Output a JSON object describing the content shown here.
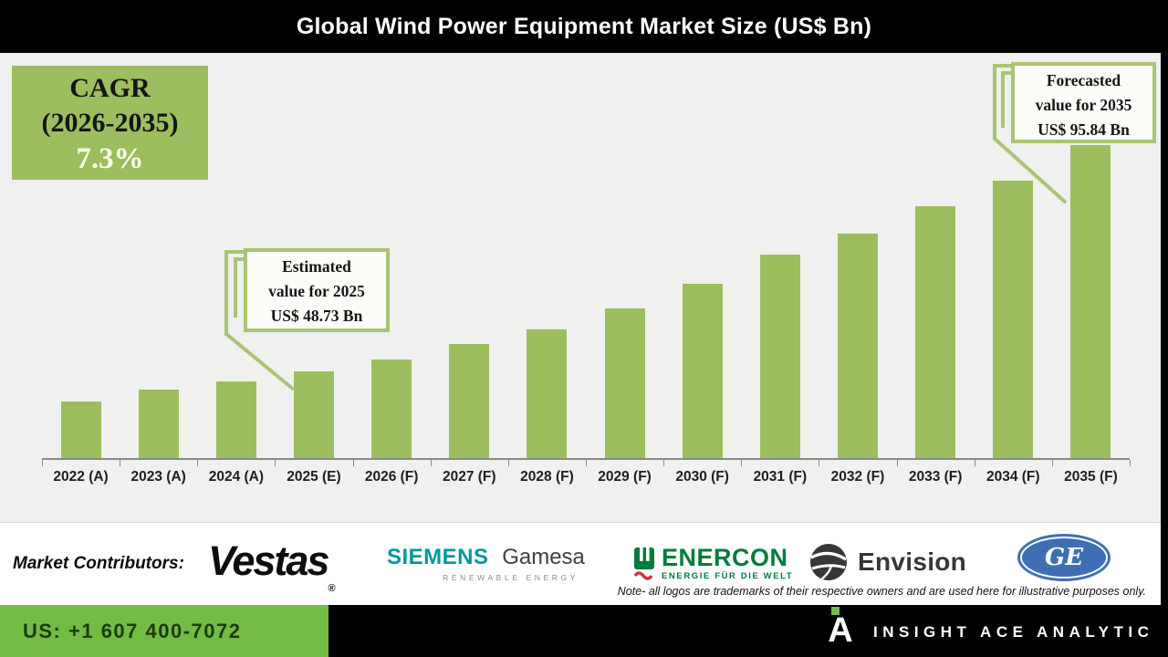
{
  "window": {
    "title": "Global Wind Power Equipment Market Size (US$ Bn)"
  },
  "cagr_box": {
    "title": "CAGR",
    "range": "(2026-2035)",
    "value": "7.3%"
  },
  "callout_estimated": {
    "line1": "Estimated",
    "line2": "value for 2025",
    "line3": "US$ 48.73 Bn"
  },
  "callout_forecasted": {
    "line1": "Forecasted",
    "line2": "value for 2035",
    "line3": "US$ 95.84 Bn"
  },
  "chart_data": {
    "type": "bar",
    "title": "Global Wind Power Equipment Market Size (US$ Bn)",
    "unit": "US$ Bn",
    "categories": [
      "2022 (A)",
      "2023 (A)",
      "2024 (A)",
      "2025 (E)",
      "2026 (F)",
      "2027 (F)",
      "2028 (F)",
      "2029 (F)",
      "2030 (F)",
      "2031 (F)",
      "2032 (F)",
      "2033 (F)",
      "2034 (F)",
      "2035 (F)"
    ],
    "values": [
      42.5,
      44.9,
      46.6,
      48.73,
      51.2,
      54.4,
      57.5,
      61.8,
      67.0,
      73.1,
      77.4,
      83.1,
      88.4,
      95.84
    ],
    "labeled_values": {
      "2025 (E)": 48.73,
      "2035 (F)": 95.84
    },
    "values_note": "2025 and 2035 values labeled on chart; other values estimated from bar heights",
    "cagr_label": "CAGR (2026-2035) 7.3%",
    "ylim": [
      30.68,
      100
    ],
    "grid": false,
    "legend": false,
    "bar_color": "#9cbe5f",
    "annotations": [
      {
        "target": "2025 (E)",
        "text": "Estimated value for 2025 US$ 48.73 Bn"
      },
      {
        "target": "2035 (F)",
        "text": "Forecasted value for 2035 US$ 95.84 Bn"
      }
    ]
  },
  "contributors": {
    "label": "Market Contributors:",
    "vestas": {
      "text": "Vestas",
      "reg": "®"
    },
    "siemens_gamesa": {
      "part1": "SIEMENS",
      "part2": "Gamesa",
      "sub": "RENEWABLE ENERGY"
    },
    "enercon": {
      "text": "ENERCON",
      "sub": "ENERGIE FÜR DIE WELT"
    },
    "envision": {
      "text": "Envision"
    },
    "ge": {
      "monogram": "GE"
    },
    "note": "Note- all logos are trademarks of their respective owners and are used here for illustrative purposes only."
  },
  "footer": {
    "phone": "US: +1 607 400-7072",
    "brand": "INSIGHT ACE ANALYTIC"
  },
  "colors": {
    "bar_green": "#9cbe5f",
    "callout_green": "#a9c573",
    "footer_green": "#74bb43",
    "siemens_teal": "#009999",
    "enercon_green": "#007b3d",
    "enercon_red": "#d5304a",
    "envision_dark": "#373737",
    "ge_blue": "#3e6fb4"
  }
}
